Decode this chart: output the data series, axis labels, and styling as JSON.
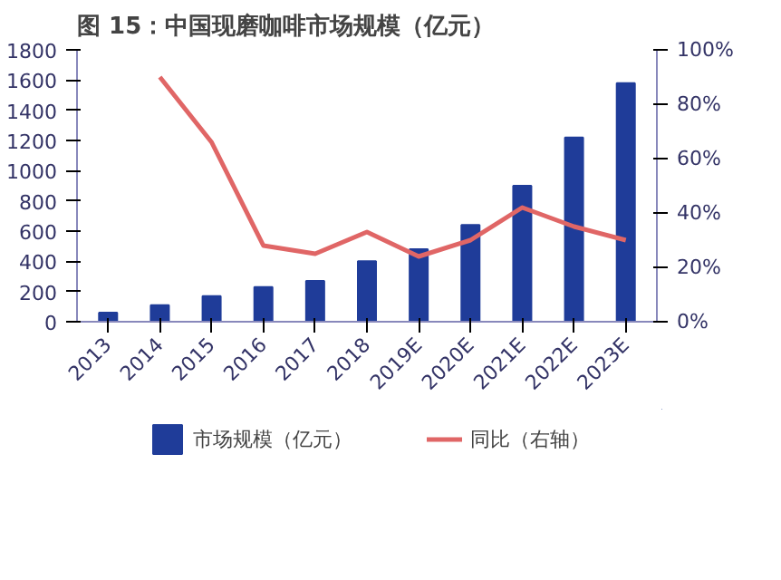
{
  "chart_data": {
    "type": "bar",
    "title": "图 15：中国现磨咖啡市场规模（亿元）",
    "categories": [
      "2013",
      "2014",
      "2015",
      "2016",
      "2017",
      "2018",
      "2019E",
      "2020E",
      "2021E",
      "2022E",
      "2023E"
    ],
    "series": [
      {
        "name": "市场规模（亿元）",
        "color": "#1f3c99",
        "values": [
          60,
          110,
          170,
          230,
          270,
          400,
          480,
          640,
          900,
          1220,
          1580
        ]
      },
      {
        "name": "同比（右轴）",
        "color": "#e06666",
        "type": "line",
        "axis": "y2",
        "values": [
          null,
          90,
          66,
          28,
          25,
          33,
          24,
          30,
          42,
          35,
          30
        ]
      }
    ],
    "ylim": [
      0,
      1800
    ],
    "yticks": [
      0,
      200,
      400,
      600,
      800,
      1000,
      1200,
      1400,
      1600,
      1800
    ],
    "y2lim": [
      0,
      100
    ],
    "y2ticks": [
      {
        "value": 0,
        "label": "0%"
      },
      {
        "value": 20,
        "label": "20%"
      },
      {
        "value": 40,
        "label": "40%"
      },
      {
        "value": 60,
        "label": "60%"
      },
      {
        "value": 80,
        "label": "80%"
      },
      {
        "value": 100,
        "label": "100%"
      }
    ],
    "grid": false,
    "legend": "bottom"
  }
}
